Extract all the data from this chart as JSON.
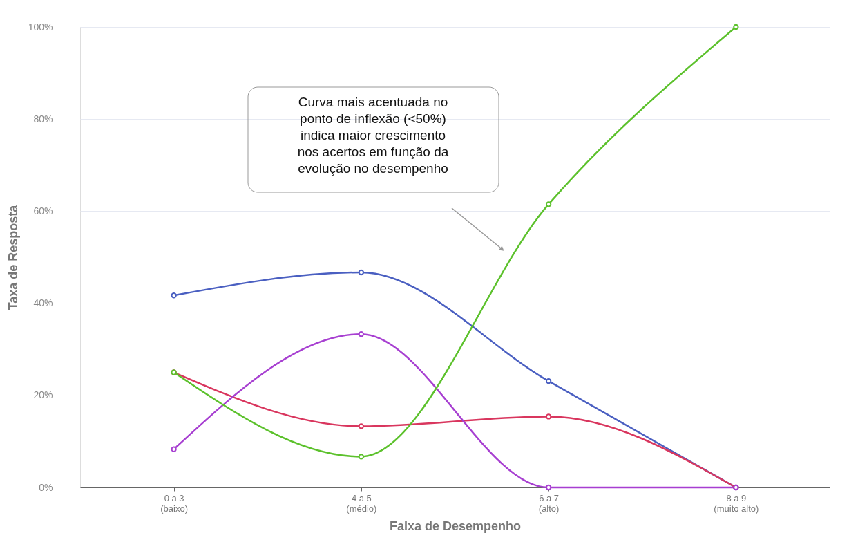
{
  "chart_data": {
    "type": "line",
    "xlabel": "Faixa de Desempenho",
    "ylabel": "Taxa de Resposta",
    "categories": [
      "0 a 3\n(baixo)",
      "4 a 5\n(médio)",
      "6 a 7\n(alto)",
      "8 a 9\n(muito alto)"
    ],
    "series": [
      {
        "color": "#4a5fc1",
        "values": [
          41.7,
          46.7,
          23.1,
          0
        ]
      },
      {
        "color": "#d9365e",
        "values": [
          25,
          13.3,
          15.4,
          0
        ]
      },
      {
        "color": "#a73fd1",
        "values": [
          8.3,
          33.3,
          0,
          0
        ]
      },
      {
        "color": "#5cc12c",
        "values": [
          25,
          6.7,
          61.5,
          100
        ]
      }
    ],
    "ylim": [
      0,
      100
    ],
    "yticks": [
      {
        "value": 0,
        "label": "0%"
      },
      {
        "value": 20,
        "label": "20%"
      },
      {
        "value": 40,
        "label": "40%"
      },
      {
        "value": 60,
        "label": "60%"
      },
      {
        "value": 80,
        "label": "80%"
      },
      {
        "value": 100,
        "label": "100%"
      }
    ],
    "grid": "y",
    "legend": false,
    "marker": "circle",
    "line_style": "solid",
    "annotations": [
      "Curva mais acentuada no\nponto de inflexão (<50%)\nindica maior crescimento\nnos acertos em função da\nevolução no desempenho"
    ]
  }
}
